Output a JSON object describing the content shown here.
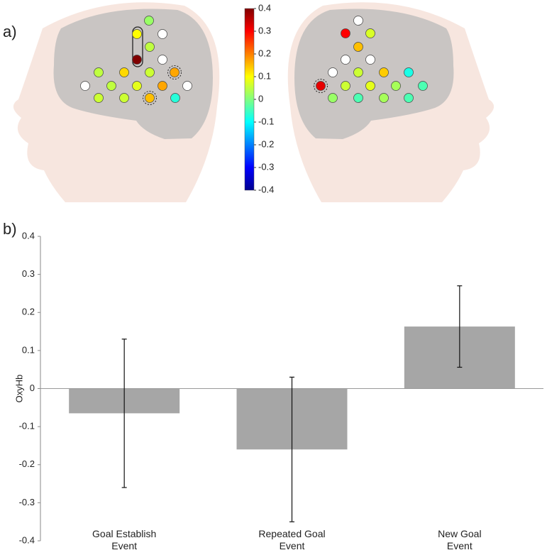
{
  "panel_labels": [
    "a)",
    "b)"
  ],
  "brain_left": {
    "values": [
      0.02,
      0.1,
      null,
      0.05,
      0.4,
      null,
      0.05,
      0.13,
      0.06,
      0.17,
      null,
      0.05,
      0.08,
      0.17,
      null,
      0.06,
      0.06,
      0.15,
      -0.07
    ]
  },
  "brain_right": {
    "values": [
      null,
      0.3,
      0.07,
      0.15,
      null,
      null,
      null,
      0.06,
      0.14,
      -0.08,
      0.32,
      0.06,
      0.08,
      0.03,
      -0.04,
      0.02,
      -0.04,
      0.03,
      -0.04
    ]
  },
  "colorbar": {
    "lim": [
      -0.4,
      0.4
    ],
    "ticks": [
      0.4,
      0.3,
      0.2,
      0.1,
      0,
      -0.1,
      -0.2,
      -0.3,
      -0.4
    ]
  },
  "chart_data": {
    "type": "bar",
    "ylabel": "OxyHb",
    "categories": [
      "Goal Establish\nEvent",
      "Repeated Goal\nEvent",
      "New Goal\nEvent"
    ],
    "values": [
      -0.065,
      -0.16,
      0.163
    ],
    "errors": [
      0.195,
      0.19,
      0.107
    ],
    "color": "#a6a6a6",
    "ylim": [
      -0.4,
      0.4
    ],
    "yticks": [
      -0.4,
      -0.3,
      -0.2,
      -0.1,
      0,
      0.1,
      0.2,
      0.3,
      0.4
    ]
  }
}
